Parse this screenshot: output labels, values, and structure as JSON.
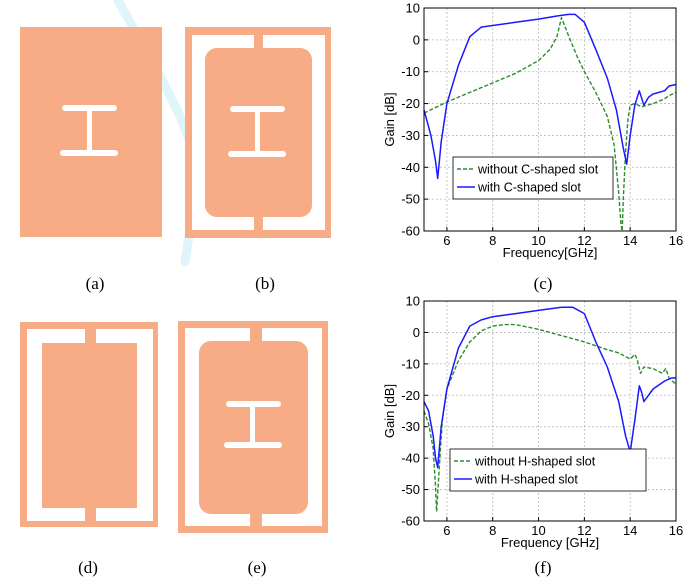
{
  "panel_labels": [
    "(a)",
    "(b)",
    "(c)",
    "(d)",
    "(e)",
    "(f)"
  ],
  "colors": {
    "antenna": "#f7ac85",
    "series_dashed": "#2e8b2e",
    "series_solid": "#1a1aff"
  },
  "chart_data": [
    {
      "type": "line",
      "panel": "(c)",
      "xlabel": "Frequency[GHz]",
      "ylabel": "Gain [dB]",
      "xlim": [
        5,
        16
      ],
      "ylim": [
        -60,
        10
      ],
      "xticks": [
        6,
        8,
        10,
        12,
        14,
        16
      ],
      "yticks": [
        10,
        0,
        -10,
        -20,
        -30,
        -40,
        -50,
        -60
      ],
      "grid": true,
      "legend_position": "bottom-left",
      "series": [
        {
          "name": "without C-shaped slot",
          "style": "dashed",
          "x": [
            5,
            6,
            7,
            8,
            9,
            10,
            10.5,
            10.8,
            11,
            11.3,
            11.7,
            12,
            12.5,
            13,
            13.3,
            13.5,
            13.6,
            13.65,
            13.7,
            13.8,
            13.9,
            14,
            14.2,
            14.5,
            15,
            15.5,
            15.7,
            16
          ],
          "y": [
            -23,
            -19.5,
            -16.5,
            -13.5,
            -10.5,
            -6.5,
            -3,
            1,
            7,
            1.5,
            -5.5,
            -10,
            -16.5,
            -24,
            -33,
            -48,
            -58,
            -60,
            -50,
            -35,
            -25,
            -20.5,
            -20,
            -21,
            -20,
            -18.5,
            -17.5,
            -16.5
          ]
        },
        {
          "name": "with C-shaped slot",
          "style": "solid",
          "x": [
            5,
            5.3,
            5.5,
            5.6,
            5.75,
            6,
            6.5,
            7,
            7.5,
            8,
            9,
            10,
            10.8,
            11.3,
            11.6,
            12,
            12.5,
            13,
            13.4,
            13.7,
            13.85,
            14,
            14.2,
            14.4,
            14.6,
            14.8,
            15,
            15.5,
            15.7,
            16
          ],
          "y": [
            -22,
            -30,
            -38,
            -43.5,
            -32,
            -20,
            -8,
            1,
            4,
            4.5,
            5.5,
            6.5,
            7.5,
            8,
            8,
            5.5,
            -3,
            -12,
            -22,
            -34,
            -39,
            -30,
            -20.5,
            -16,
            -20.5,
            -18,
            -17,
            -16,
            -14.5,
            -14
          ]
        }
      ]
    },
    {
      "type": "line",
      "panel": "(f)",
      "xlabel": "Frequency [GHz]",
      "ylabel": "Gain [dB]",
      "xlim": [
        5,
        16
      ],
      "ylim": [
        -60,
        10
      ],
      "xticks": [
        6,
        8,
        10,
        12,
        14,
        16
      ],
      "yticks": [
        10,
        0,
        -10,
        -20,
        -30,
        -40,
        -50,
        -60
      ],
      "grid": true,
      "legend_position": "bottom-right",
      "series": [
        {
          "name": "without H-shaped slot",
          "style": "dashed",
          "x": [
            5,
            5.2,
            5.4,
            5.5,
            5.55,
            5.65,
            5.8,
            6,
            6.5,
            7,
            7.5,
            8,
            8.5,
            9,
            10,
            11,
            12,
            13,
            13.5,
            14,
            14.2,
            14.3,
            14.45,
            14.6,
            15,
            15.4,
            15.55,
            15.7,
            16
          ],
          "y": [
            -25,
            -29,
            -37,
            -49,
            -57,
            -45,
            -28,
            -18,
            -9,
            -3,
            0.5,
            2,
            2.5,
            2.5,
            1,
            -1,
            -3,
            -5.5,
            -6.5,
            -8.5,
            -7,
            -8.5,
            -13,
            -11,
            -11.5,
            -13,
            -11.5,
            -14.5,
            -16.5
          ]
        },
        {
          "name": "with H-shaped slot",
          "style": "solid",
          "x": [
            5,
            5.2,
            5.4,
            5.5,
            5.6,
            5.75,
            6,
            6.5,
            7,
            7.5,
            8,
            9,
            10,
            11,
            11.5,
            12,
            12.5,
            13,
            13.5,
            13.8,
            14,
            14.2,
            14.4,
            14.5,
            14.6,
            15,
            15.5,
            15.8,
            16
          ],
          "y": [
            -22,
            -25,
            -33,
            -40,
            -43,
            -30,
            -18,
            -5,
            2,
            4,
            5,
            6,
            7,
            8,
            8,
            6,
            -3,
            -11,
            -22,
            -33,
            -38,
            -28,
            -17,
            -19,
            -22,
            -18,
            -15.5,
            -14.5,
            -14.5
          ]
        }
      ]
    }
  ]
}
